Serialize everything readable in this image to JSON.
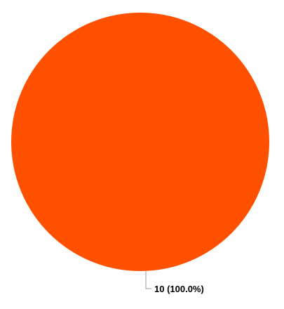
{
  "chart_data": {
    "type": "pie",
    "title": "",
    "slices": [
      {
        "label": "",
        "value": 10,
        "percent": 100.0,
        "color": "#FF5000"
      }
    ],
    "data_labels": [
      "10 (100.0%)"
    ],
    "legend": "none"
  }
}
